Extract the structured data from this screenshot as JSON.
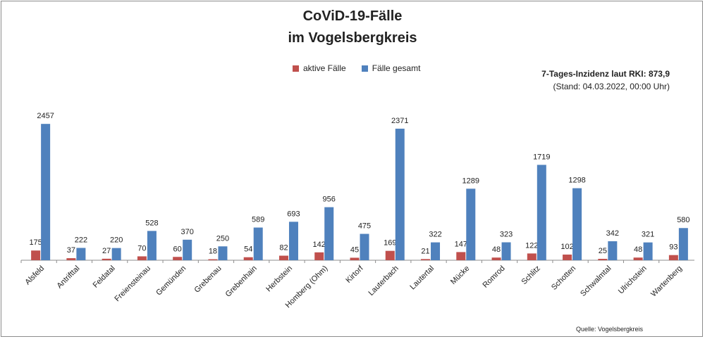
{
  "title_line1": "CoViD-19-Fälle",
  "title_line2": "im Vogelsbergkreis",
  "incidence": "7-Tages-Inzidenz laut RKI: 873,9",
  "as_of": "(Stand: 04.03.2022, 00:00 Uhr)",
  "source": "Quelle: Vogelsbergkreis",
  "colors": {
    "aktive": "#c0504d",
    "gesamt": "#4f81bd"
  },
  "chart_data": {
    "type": "bar",
    "categories": [
      "Alsfeld",
      "Antrifttal",
      "Feldatal",
      "Freiensteinau",
      "Gemünden",
      "Grebenau",
      "Grebenhain",
      "Herbstein",
      "Homberg (Ohm)",
      "Kirtorf",
      "Lauterbach",
      "Lautertal",
      "Mücke",
      "Romrod",
      "Schlitz",
      "Schotten",
      "Schwalmtal",
      "Ulrichstein",
      "Wartenberg"
    ],
    "series": [
      {
        "name": "aktive Fälle",
        "values": [
          175,
          37,
          27,
          70,
          60,
          18,
          54,
          82,
          142,
          45,
          169,
          21,
          147,
          48,
          122,
          102,
          25,
          48,
          93
        ]
      },
      {
        "name": "Fälle gesamt",
        "values": [
          2457,
          222,
          220,
          528,
          370,
          250,
          589,
          693,
          956,
          475,
          2371,
          322,
          1289,
          323,
          1719,
          1298,
          342,
          321,
          580
        ]
      }
    ],
    "ylim": [
      0,
      2700
    ],
    "grid": false,
    "legend": "top-center"
  }
}
